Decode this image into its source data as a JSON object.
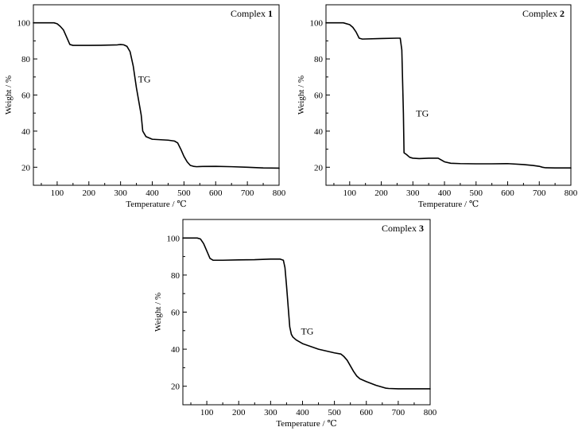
{
  "chart_data": [
    {
      "type": "line",
      "title": "Complex",
      "title_number": "1",
      "xlabel": "Temperature / ℃",
      "ylabel": "Weight / %",
      "xlim": [
        25,
        800
      ],
      "ylim": [
        10,
        110
      ],
      "xticks": [
        100,
        200,
        300,
        400,
        500,
        600,
        700,
        800
      ],
      "yticks": [
        20,
        40,
        60,
        80,
        100
      ],
      "grid": false,
      "annotation": {
        "text": "TG",
        "x": 355,
        "y": 67
      },
      "series": [
        {
          "x": [
            25,
            90,
            100,
            110,
            120,
            130,
            140,
            150,
            200,
            250,
            290,
            300,
            310,
            320,
            330,
            340,
            350,
            360,
            365,
            370,
            380,
            400,
            450,
            470,
            480,
            490,
            500,
            510,
            520,
            530,
            540,
            550,
            600,
            650,
            700,
            750,
            800
          ],
          "y": [
            100,
            100,
            99.5,
            98,
            96,
            92,
            88,
            87.5,
            87.5,
            87.6,
            87.8,
            88,
            87.8,
            87,
            84,
            76,
            64,
            54,
            49,
            40,
            37,
            35.5,
            35,
            34.5,
            33.5,
            30,
            26,
            23,
            21,
            20.5,
            20.3,
            20.4,
            20.5,
            20.3,
            20,
            19.6,
            19.5
          ]
        }
      ]
    },
    {
      "type": "line",
      "title": "Complex",
      "title_number": "2",
      "xlabel": "Temperature / ℃",
      "ylabel": "Weight / %",
      "xlim": [
        25,
        800
      ],
      "ylim": [
        10,
        110
      ],
      "xticks": [
        100,
        200,
        300,
        400,
        500,
        600,
        700,
        800
      ],
      "yticks": [
        20,
        40,
        60,
        80,
        100
      ],
      "grid": false,
      "annotation": {
        "text": "TG",
        "x": 310,
        "y": 48
      },
      "series": [
        {
          "x": [
            25,
            80,
            100,
            110,
            120,
            130,
            140,
            200,
            250,
            260,
            265,
            270,
            272,
            280,
            290,
            300,
            320,
            350,
            380,
            400,
            420,
            450,
            500,
            550,
            600,
            650,
            680,
            700,
            710,
            720,
            750,
            800
          ],
          "y": [
            100,
            100,
            99,
            97.5,
            95,
            91.5,
            91,
            91.3,
            91.5,
            91.5,
            85,
            50,
            28,
            27,
            25.5,
            25,
            24.8,
            25,
            25,
            23,
            22.2,
            22,
            21.9,
            21.9,
            22,
            21.5,
            21,
            20.5,
            20,
            19.7,
            19.6,
            19.6
          ]
        }
      ]
    },
    {
      "type": "line",
      "title": "Complex",
      "title_number": "3",
      "xlabel": "Temperature / ℃",
      "ylabel": "Weight / %",
      "xlim": [
        25,
        800
      ],
      "ylim": [
        10,
        110
      ],
      "xticks": [
        100,
        200,
        300,
        400,
        500,
        600,
        700,
        800
      ],
      "yticks": [
        20,
        40,
        60,
        80,
        100
      ],
      "grid": false,
      "annotation": {
        "text": "TG",
        "x": 395,
        "y": 48
      },
      "series": [
        {
          "x": [
            25,
            70,
            80,
            90,
            100,
            110,
            120,
            150,
            200,
            250,
            300,
            330,
            340,
            345,
            350,
            355,
            360,
            365,
            370,
            380,
            400,
            450,
            500,
            520,
            530,
            540,
            550,
            560,
            570,
            580,
            600,
            630,
            660,
            670,
            700,
            750,
            800
          ],
          "y": [
            100,
            100,
            99.5,
            97,
            93,
            89,
            88,
            88,
            88.2,
            88.3,
            88.6,
            88.6,
            88,
            84,
            74,
            63,
            52,
            48,
            46.5,
            45,
            43,
            40,
            38,
            37.4,
            36,
            34,
            31,
            28,
            25.5,
            24,
            22.5,
            20.5,
            19,
            18.8,
            18.6,
            18.6,
            18.6
          ]
        }
      ]
    }
  ]
}
